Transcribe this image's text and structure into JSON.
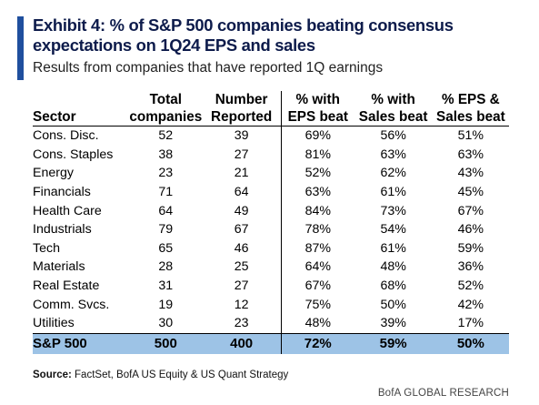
{
  "title": "Exhibit 4: % of S&P 500 companies beating consensus expectations on 1Q24 EPS and sales",
  "subtitle": "Results from companies that have reported 1Q earnings",
  "headers": {
    "sector": "Sector",
    "total": "Total companies",
    "number": "Number Reported",
    "eps": "% with EPS beat",
    "sales": "% with Sales beat",
    "both": "% EPS & Sales beat"
  },
  "rows": [
    {
      "sector": "Cons. Disc.",
      "total": "52",
      "reported": "39",
      "eps": "69%",
      "sales": "56%",
      "both": "51%"
    },
    {
      "sector": "Cons. Staples",
      "total": "38",
      "reported": "27",
      "eps": "81%",
      "sales": "63%",
      "both": "63%"
    },
    {
      "sector": "Energy",
      "total": "23",
      "reported": "21",
      "eps": "52%",
      "sales": "62%",
      "both": "43%"
    },
    {
      "sector": "Financials",
      "total": "71",
      "reported": "64",
      "eps": "63%",
      "sales": "61%",
      "both": "45%"
    },
    {
      "sector": "Health Care",
      "total": "64",
      "reported": "49",
      "eps": "84%",
      "sales": "73%",
      "both": "67%"
    },
    {
      "sector": "Industrials",
      "total": "79",
      "reported": "67",
      "eps": "78%",
      "sales": "54%",
      "both": "46%"
    },
    {
      "sector": "Tech",
      "total": "65",
      "reported": "46",
      "eps": "87%",
      "sales": "61%",
      "both": "59%"
    },
    {
      "sector": "Materials",
      "total": "28",
      "reported": "25",
      "eps": "64%",
      "sales": "48%",
      "both": "36%"
    },
    {
      "sector": "Real Estate",
      "total": "31",
      "reported": "27",
      "eps": "67%",
      "sales": "68%",
      "both": "52%"
    },
    {
      "sector": "Comm. Svcs.",
      "total": "19",
      "reported": "12",
      "eps": "75%",
      "sales": "50%",
      "both": "42%"
    },
    {
      "sector": "Utilities",
      "total": "30",
      "reported": "23",
      "eps": "48%",
      "sales": "39%",
      "both": "17%"
    }
  ],
  "total_row": {
    "sector": "S&P 500",
    "total": "500",
    "reported": "400",
    "eps": "72%",
    "sales": "59%",
    "both": "50%"
  },
  "source_label": "Source:",
  "source_text": "FactSet, BofA US Equity & US Quant Strategy",
  "brand": "BofA GLOBAL RESEARCH",
  "colors": {
    "accent_bar": "#1f4f9e",
    "title": "#0d1b4b",
    "total_row_bg": "#9dc3e6"
  },
  "chart_data": {
    "type": "table",
    "title": "Exhibit 4: % of S&P 500 companies beating consensus expectations on 1Q24 EPS and sales",
    "subtitle": "Results from companies that have reported 1Q earnings",
    "columns": [
      "Sector",
      "Total companies",
      "Number Reported",
      "% with EPS beat",
      "% with Sales beat",
      "% EPS & Sales beat"
    ],
    "categories": [
      "Cons. Disc.",
      "Cons. Staples",
      "Energy",
      "Financials",
      "Health Care",
      "Industrials",
      "Tech",
      "Materials",
      "Real Estate",
      "Comm. Svcs.",
      "Utilities",
      "S&P 500"
    ],
    "series": [
      {
        "name": "Total companies",
        "values": [
          52,
          38,
          23,
          71,
          64,
          79,
          65,
          28,
          31,
          19,
          30,
          500
        ]
      },
      {
        "name": "Number Reported",
        "values": [
          39,
          27,
          21,
          64,
          49,
          67,
          46,
          25,
          27,
          12,
          23,
          400
        ]
      },
      {
        "name": "% with EPS beat",
        "values": [
          69,
          81,
          52,
          63,
          84,
          78,
          87,
          64,
          67,
          75,
          48,
          72
        ]
      },
      {
        "name": "% with Sales beat",
        "values": [
          56,
          63,
          62,
          61,
          73,
          54,
          61,
          48,
          68,
          50,
          39,
          59
        ]
      },
      {
        "name": "% EPS & Sales beat",
        "values": [
          51,
          63,
          43,
          45,
          67,
          46,
          59,
          36,
          52,
          42,
          17,
          50
        ]
      }
    ]
  }
}
